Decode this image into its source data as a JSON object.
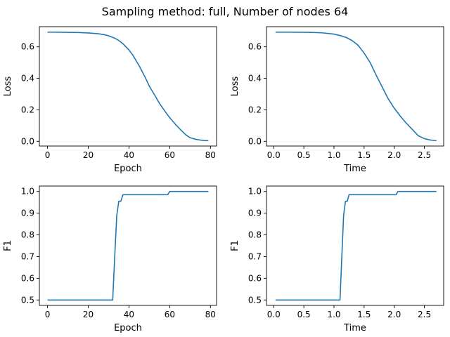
{
  "figure": {
    "suptitle": "Sampling method: full, Number of nodes 64"
  },
  "chart_data": [
    {
      "type": "line",
      "xlabel": "Epoch",
      "ylabel": "Loss",
      "xlim": [
        -4,
        83
      ],
      "ylim": [
        -0.03,
        0.728
      ],
      "xticks": [
        0,
        20,
        40,
        60,
        80
      ],
      "xticklabels": [
        "0",
        "20",
        "40",
        "60",
        "80"
      ],
      "yticks": [
        0.0,
        0.2,
        0.4,
        0.6
      ],
      "yticklabels": [
        "0.0",
        "0.2",
        "0.4",
        "0.6"
      ],
      "color": "#1f77b4",
      "grid": false,
      "series": [
        {
          "x": [
            0,
            5,
            10,
            15,
            20,
            25,
            28,
            30,
            33,
            35,
            37,
            40,
            42,
            45,
            48,
            50,
            53,
            55,
            58,
            60,
            63,
            65,
            68,
            70,
            73,
            75,
            77,
            79
          ],
          "y": [
            0.693,
            0.693,
            0.692,
            0.691,
            0.688,
            0.683,
            0.677,
            0.67,
            0.655,
            0.64,
            0.62,
            0.58,
            0.545,
            0.48,
            0.405,
            0.35,
            0.285,
            0.24,
            0.185,
            0.15,
            0.105,
            0.078,
            0.04,
            0.023,
            0.012,
            0.008,
            0.005,
            0.004
          ]
        }
      ]
    },
    {
      "type": "line",
      "xlabel": "Time",
      "ylabel": "Loss",
      "xlim": [
        -0.12,
        2.82
      ],
      "ylim": [
        -0.03,
        0.728
      ],
      "xticks": [
        0.0,
        0.5,
        1.0,
        1.5,
        2.0,
        2.5
      ],
      "xticklabels": [
        "0.0",
        "0.5",
        "1.0",
        "1.5",
        "2.0",
        "2.5"
      ],
      "yticks": [
        0.0,
        0.2,
        0.4,
        0.6
      ],
      "yticklabels": [
        "0.0",
        "0.2",
        "0.4",
        "0.6"
      ],
      "color": "#1f77b4",
      "grid": false,
      "series": [
        {
          "x": [
            0.03,
            0.3,
            0.6,
            0.8,
            1.0,
            1.1,
            1.2,
            1.3,
            1.4,
            1.5,
            1.6,
            1.7,
            1.8,
            1.9,
            2.0,
            2.1,
            2.2,
            2.3,
            2.4,
            2.5,
            2.6,
            2.7
          ],
          "y": [
            0.693,
            0.693,
            0.692,
            0.689,
            0.681,
            0.672,
            0.66,
            0.64,
            0.61,
            0.56,
            0.5,
            0.42,
            0.345,
            0.27,
            0.21,
            0.16,
            0.115,
            0.075,
            0.035,
            0.017,
            0.008,
            0.004
          ]
        }
      ]
    },
    {
      "type": "line",
      "xlabel": "Epoch",
      "ylabel": "F1",
      "xlim": [
        -4,
        83
      ],
      "ylim": [
        0.475,
        1.025
      ],
      "xticks": [
        0,
        20,
        40,
        60,
        80
      ],
      "xticklabels": [
        "0",
        "20",
        "40",
        "60",
        "80"
      ],
      "yticks": [
        0.5,
        0.6,
        0.7,
        0.8,
        0.9,
        1.0
      ],
      "yticklabels": [
        "0.5",
        "0.6",
        "0.7",
        "0.8",
        "0.9",
        "1.0"
      ],
      "color": "#1f77b4",
      "grid": false,
      "series": [
        {
          "x": [
            0,
            32,
            33,
            34,
            35,
            36,
            37,
            38,
            58,
            59,
            60,
            79
          ],
          "y": [
            0.5,
            0.5,
            0.7,
            0.89,
            0.955,
            0.955,
            0.985,
            0.985,
            0.985,
            0.985,
            1.0,
            1.0
          ]
        }
      ]
    },
    {
      "type": "line",
      "xlabel": "Time",
      "ylabel": "F1",
      "xlim": [
        -0.12,
        2.82
      ],
      "ylim": [
        0.475,
        1.025
      ],
      "xticks": [
        0.0,
        0.5,
        1.0,
        1.5,
        2.0,
        2.5
      ],
      "xticklabels": [
        "0.0",
        "0.5",
        "1.0",
        "1.5",
        "2.0",
        "2.5"
      ],
      "yticks": [
        0.5,
        0.6,
        0.7,
        0.8,
        0.9,
        1.0
      ],
      "yticklabels": [
        "0.5",
        "0.6",
        "0.7",
        "0.8",
        "0.9",
        "1.0"
      ],
      "color": "#1f77b4",
      "grid": false,
      "series": [
        {
          "x": [
            0.03,
            1.1,
            1.13,
            1.16,
            1.19,
            1.22,
            1.25,
            1.28,
            2.0,
            2.03,
            2.06,
            2.7
          ],
          "y": [
            0.5,
            0.5,
            0.7,
            0.89,
            0.955,
            0.955,
            0.985,
            0.985,
            0.985,
            0.985,
            1.0,
            1.0
          ]
        }
      ]
    }
  ]
}
